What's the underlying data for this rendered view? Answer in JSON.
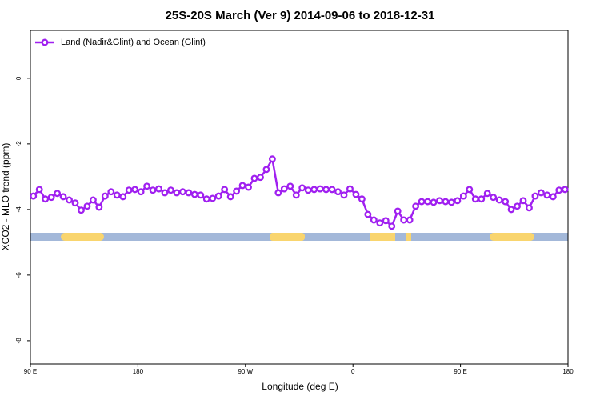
{
  "chart_data": {
    "type": "line",
    "title": "25S-20S March (Ver 9)   2014-09-06 to 2018-12-31",
    "xlabel": "Longitude (deg E)",
    "ylabel": "XCO2 - MLO trend (ppm)",
    "xlim": [
      90,
      540
    ],
    "ylim": [
      -8.71,
      1.46
    ],
    "xticks": [
      {
        "value": 90,
        "label": "90 E"
      },
      180,
      {
        "value": 270,
        "label": "90 W"
      },
      {
        "value": 360,
        "label": "0"
      },
      {
        "value": 450,
        "label": "90 E"
      },
      {
        "value": 540,
        "label": "180"
      }
    ],
    "yticks": [
      0,
      -2,
      -4,
      -6,
      -8
    ],
    "legend": "top-left",
    "x": [
      92.5,
      97.5,
      102.5,
      107.5,
      112.5,
      117.5,
      122.5,
      127.5,
      132.5,
      137.5,
      142.5,
      147.5,
      152.5,
      157.5,
      162.5,
      167.5,
      172.5,
      177.5,
      182.5,
      187.5,
      192.5,
      197.5,
      202.5,
      207.5,
      212.5,
      217.5,
      222.5,
      227.5,
      232.5,
      237.5,
      242.5,
      247.5,
      252.5,
      257.5,
      262.5,
      267.5,
      272.5,
      277.5,
      282.5,
      287.5,
      292.5,
      297.5,
      302.5,
      307.5,
      312.5,
      317.5,
      322.5,
      327.5,
      332.5,
      337.5,
      342.5,
      347.5,
      352.5,
      357.5,
      362.5,
      367.5,
      372.5,
      377.5,
      382.5,
      387.5,
      392.5,
      397.5,
      402.5,
      407.5,
      412.5,
      417.5,
      422.5,
      427.5,
      432.5,
      437.5,
      442.5,
      447.5,
      452.5,
      457.5,
      462.5,
      467.5,
      472.5,
      477.5,
      482.5,
      487.5,
      492.5,
      497.5,
      502.5,
      507.5,
      512.5,
      517.5,
      522.5,
      527.5,
      532.5,
      537.5
    ],
    "series": [
      {
        "name": "Land (Nadir&Glint) and Ocean (Glint)",
        "color": "#a020f0",
        "values": [
          -3.59,
          -3.39,
          -3.68,
          -3.63,
          -3.51,
          -3.61,
          -3.71,
          -3.8,
          -4.02,
          -3.9,
          -3.71,
          -3.93,
          -3.59,
          -3.46,
          -3.56,
          -3.61,
          -3.41,
          -3.39,
          -3.46,
          -3.29,
          -3.41,
          -3.37,
          -3.49,
          -3.41,
          -3.49,
          -3.46,
          -3.49,
          -3.54,
          -3.56,
          -3.68,
          -3.66,
          -3.59,
          -3.39,
          -3.61,
          -3.44,
          -3.27,
          -3.32,
          -3.05,
          -3.02,
          -2.78,
          -2.46,
          -3.49,
          -3.37,
          -3.29,
          -3.56,
          -3.34,
          -3.41,
          -3.39,
          -3.37,
          -3.39,
          -3.39,
          -3.46,
          -3.56,
          -3.37,
          -3.54,
          -3.68,
          -4.15,
          -4.32,
          -4.41,
          -4.34,
          -4.51,
          -4.05,
          -4.32,
          -4.32,
          -3.9,
          -3.76,
          -3.76,
          -3.78,
          -3.73,
          -3.76,
          -3.78,
          -3.73,
          -3.59,
          -3.39,
          -3.68,
          -3.68,
          -3.51,
          -3.63,
          -3.71,
          -3.76,
          -4.0,
          -3.9,
          -3.73,
          -3.95,
          -3.59,
          -3.49,
          -3.56,
          -3.61,
          -3.41,
          -3.39
        ]
      }
    ]
  }
}
